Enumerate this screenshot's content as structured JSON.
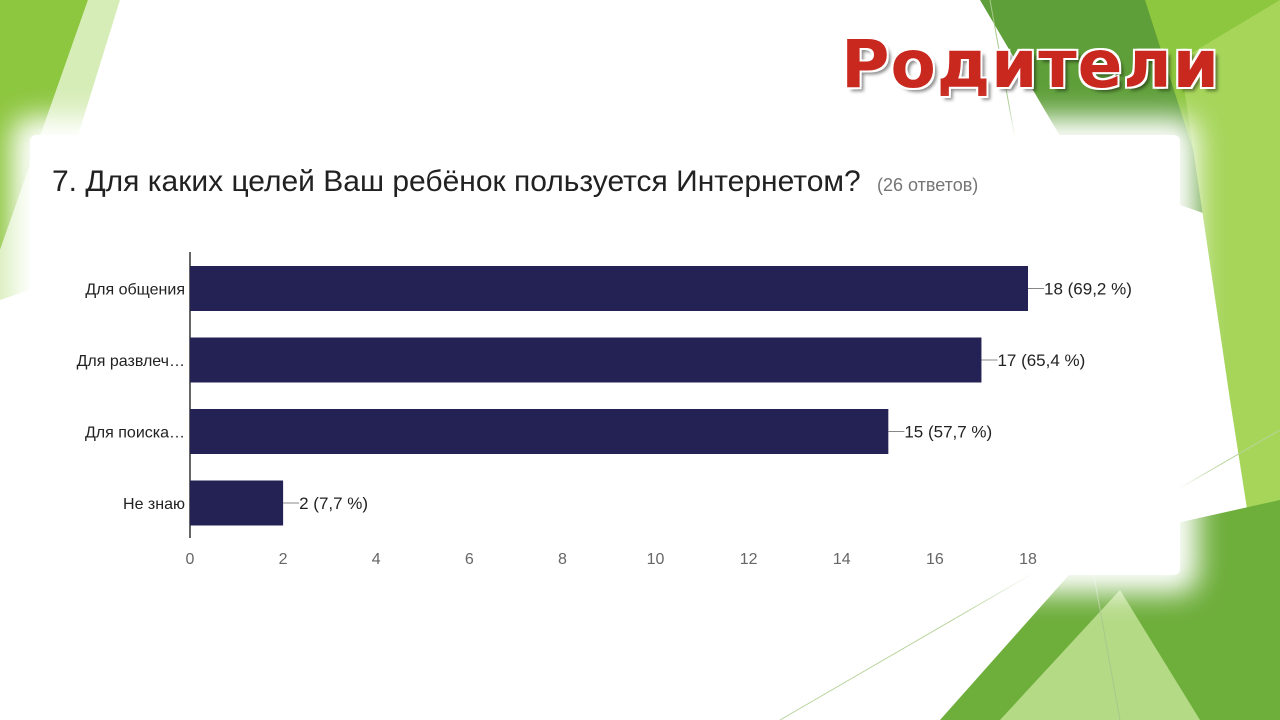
{
  "slide": {
    "title": "Родители",
    "colors": {
      "green_light": "#8dc63f",
      "green_dark": "#5a9e2f",
      "title": "#c8281e"
    }
  },
  "question": {
    "text": "7. Для каких целей Ваш ребёнок пользуется Интернетом?",
    "responses": "(26 ответов)"
  },
  "chart_data": {
    "type": "bar",
    "orientation": "horizontal",
    "categories": [
      "Для общения",
      "Для развлеч…",
      "Для поиска…",
      "Не знаю"
    ],
    "values": [
      18,
      17,
      15,
      2
    ],
    "data_labels": [
      "18 (69,2 %)",
      "17 (65,4 %)",
      "15 (57,7 %)",
      "2 (7,7 %)"
    ],
    "xlim": [
      0,
      18
    ],
    "xticks": [
      0,
      2,
      4,
      6,
      8,
      10,
      12,
      14,
      16,
      18
    ],
    "bar_color": "#242154",
    "grid": false
  }
}
